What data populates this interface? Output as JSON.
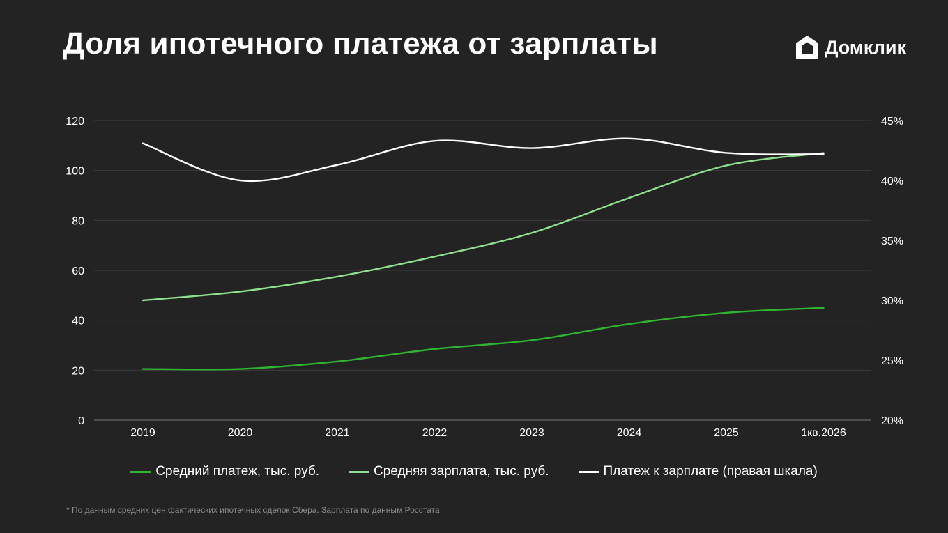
{
  "title": "Доля ипотечного платежа от зарплаты",
  "brand": {
    "name": "Домклик",
    "icon": "domclick-house-icon"
  },
  "colors": {
    "background": "#232323",
    "grid": "#3d3d3d",
    "payment": "#2fb52f",
    "salary": "#8ee08e",
    "ratio": "#ffffff"
  },
  "chart_data": {
    "type": "line",
    "categories": [
      "2019",
      "2020",
      "2021",
      "2022",
      "2023",
      "2024",
      "2025",
      "1кв.2026"
    ],
    "y_left": {
      "min": 0,
      "max": 120,
      "ticks": [
        "0",
        "20",
        "40",
        "60",
        "80",
        "100",
        "120"
      ]
    },
    "y_right": {
      "min": 20,
      "max": 45,
      "ticks": [
        "20%",
        "25%",
        "30%",
        "35%",
        "40%",
        "45%"
      ]
    },
    "grid": true,
    "legend_position": "bottom",
    "series": [
      {
        "name": "Средний платеж, тыс. руб.",
        "axis": "left",
        "color": "#2fb52f",
        "values": [
          20.5,
          20.5,
          23.5,
          28.5,
          32,
          38.5,
          43,
          45
        ]
      },
      {
        "name": "Средняя зарплата, тыс. руб.",
        "axis": "left",
        "color": "#8ee08e",
        "values": [
          48,
          51.5,
          57.5,
          65.5,
          75,
          89,
          102,
          107
        ]
      },
      {
        "name": "Платеж к зарплате (правая шкала)",
        "axis": "right",
        "color": "#ffffff",
        "values": [
          43.1,
          40,
          41.3,
          43.3,
          42.7,
          43.5,
          42.3,
          42.2
        ]
      }
    ]
  },
  "footnote": "* По данным средних цен фактических ипотечных сделок Сбера.  Зарплата по данным Росстата"
}
